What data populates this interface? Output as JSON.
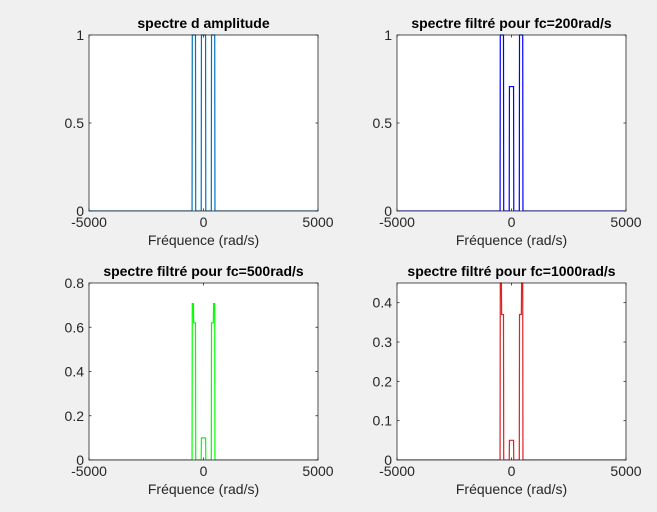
{
  "figure": {
    "background_color": "#f0f0f0",
    "axes_background_color": "#ffffff"
  },
  "chart_data": [
    {
      "type": "line",
      "title": "spectre d amplitude",
      "xlabel": "Fréquence (rad/s)",
      "ylabel": "",
      "xlim": [
        -5000,
        5000
      ],
      "ylim": [
        0,
        1
      ],
      "xticks": [
        -5000,
        0,
        5000
      ],
      "xtick_labels": [
        "-5000",
        "0",
        "5000"
      ],
      "yticks": [
        0,
        0.5,
        1
      ],
      "ytick_labels": [
        "0",
        "0.5",
        "1"
      ],
      "grid": false,
      "series": [
        {
          "name": "spectre",
          "color": "#0072bd",
          "x": [
            -5000,
            -500,
            -490,
            -350,
            -340,
            -100,
            -90,
            90,
            100,
            340,
            350,
            490,
            500,
            5000
          ],
          "y": [
            0,
            0,
            1,
            1,
            0,
            0,
            1,
            1,
            0,
            0,
            1,
            1,
            0,
            0
          ]
        }
      ]
    },
    {
      "type": "line",
      "title": "spectre filtré pour fc=200rad/s",
      "xlabel": "Fréquence (rad/s)",
      "ylabel": "",
      "xlim": [
        -5000,
        5000
      ],
      "ylim": [
        0,
        1
      ],
      "xticks": [
        -5000,
        0,
        5000
      ],
      "xtick_labels": [
        "-5000",
        "0",
        "5000"
      ],
      "yticks": [
        0,
        0.5,
        1
      ],
      "ytick_labels": [
        "0",
        "0.5",
        "1"
      ],
      "grid": false,
      "series": [
        {
          "name": "spectre filtré",
          "color": "#0000ff",
          "x": [
            -5000,
            -500,
            -490,
            -350,
            -340,
            -100,
            -90,
            90,
            100,
            340,
            350,
            490,
            500,
            5000
          ],
          "y": [
            0,
            0,
            1,
            1,
            0,
            0,
            0.707,
            0.707,
            0,
            0,
            1,
            1,
            0,
            0
          ]
        }
      ]
    },
    {
      "type": "line",
      "title": "spectre filtré pour fc=500rad/s",
      "xlabel": "Fréquence (rad/s)",
      "ylabel": "",
      "xlim": [
        -5000,
        5000
      ],
      "ylim": [
        0,
        0.8
      ],
      "xticks": [
        -5000,
        0,
        5000
      ],
      "xtick_labels": [
        "-5000",
        "0",
        "5000"
      ],
      "yticks": [
        0,
        0.2,
        0.4,
        0.6,
        0.8
      ],
      "ytick_labels": [
        "0",
        "0.2",
        "0.4",
        "0.6",
        "0.8"
      ],
      "grid": false,
      "series": [
        {
          "name": "spectre filtré",
          "color": "#00ff00",
          "x": [
            -5000,
            -500,
            -490,
            -440,
            -430,
            -350,
            -340,
            -100,
            -90,
            90,
            100,
            340,
            350,
            430,
            440,
            490,
            500,
            5000
          ],
          "y": [
            0,
            0,
            0.707,
            0.707,
            0.62,
            0.62,
            0,
            0,
            0.1,
            0.1,
            0,
            0,
            0.62,
            0.62,
            0.707,
            0.707,
            0,
            0
          ]
        }
      ]
    },
    {
      "type": "line",
      "title": "spectre filtré pour fc=1000rad/s",
      "xlabel": "Fréquence (rad/s)",
      "ylabel": "",
      "xlim": [
        -5000,
        5000
      ],
      "ylim": [
        0,
        0.45
      ],
      "xticks": [
        -5000,
        0,
        5000
      ],
      "xtick_labels": [
        "-5000",
        "0",
        "5000"
      ],
      "yticks": [
        0,
        0.1,
        0.2,
        0.3,
        0.4
      ],
      "ytick_labels": [
        "0",
        "0.1",
        "0.2",
        "0.3",
        "0.4"
      ],
      "grid": false,
      "series": [
        {
          "name": "spectre filtré",
          "color": "#dd2222",
          "x": [
            -5000,
            -500,
            -490,
            -440,
            -430,
            -350,
            -340,
            -100,
            -90,
            90,
            100,
            340,
            350,
            430,
            440,
            490,
            500,
            5000
          ],
          "y": [
            0,
            0,
            0.45,
            0.45,
            0.37,
            0.37,
            0,
            0,
            0.05,
            0.05,
            0,
            0,
            0.37,
            0.37,
            0.45,
            0.45,
            0,
            0
          ]
        }
      ]
    }
  ]
}
